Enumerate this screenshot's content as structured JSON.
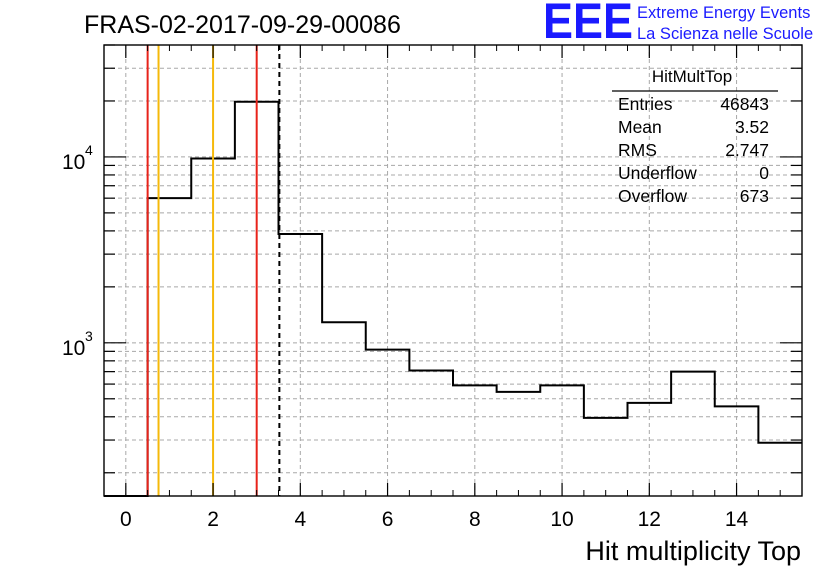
{
  "chart_data": {
    "type": "histogram",
    "title": "FRAS-02-2017-09-29-00086",
    "xlabel": "Hit multiplicity Top",
    "ylabel": "",
    "x_scale": "linear",
    "y_scale": "log",
    "xlim": [
      -0.5,
      15.5
    ],
    "ylim": [
      150,
      40000
    ],
    "grid": true,
    "x_ticks": [
      0,
      2,
      4,
      6,
      8,
      10,
      12,
      14
    ],
    "y_tick_labels": [
      {
        "value": 1000,
        "base": "10",
        "exp": "3"
      },
      {
        "value": 10000,
        "base": "10",
        "exp": "4"
      }
    ],
    "bin_edges": [
      -0.5,
      0.5,
      1.5,
      2.5,
      3.5,
      4.5,
      5.5,
      6.5,
      7.5,
      8.5,
      9.5,
      10.5,
      11.5,
      12.5,
      13.5,
      14.5,
      15.5
    ],
    "counts": [
      0,
      6000,
      9800,
      19800,
      3850,
      1290,
      920,
      710,
      590,
      545,
      590,
      395,
      475,
      700,
      455,
      290
    ],
    "vertical_lines": [
      {
        "x": 0.5,
        "color": "#e8231a",
        "style": "solid"
      },
      {
        "x": 0.75,
        "color": "#f5b90a",
        "style": "solid"
      },
      {
        "x": 2.0,
        "color": "#f5b90a",
        "style": "solid"
      },
      {
        "x": 3.0,
        "color": "#e8231a",
        "style": "solid"
      },
      {
        "x": 3.52,
        "color": "#000000",
        "style": "dashed"
      }
    ],
    "stats_box": {
      "title": "HitMultTop",
      "rows": [
        {
          "label": "Entries",
          "value": "46843"
        },
        {
          "label": "Mean",
          "value": "3.52"
        },
        {
          "label": "RMS",
          "value": "2.747"
        },
        {
          "label": "Underflow",
          "value": "0"
        },
        {
          "label": "Overflow",
          "value": "673"
        }
      ]
    }
  },
  "logo": {
    "text": "EEE",
    "line1": "Extreme Energy Events",
    "line2": "La Scienza nelle Scuole",
    "color": "#1a1aff"
  }
}
